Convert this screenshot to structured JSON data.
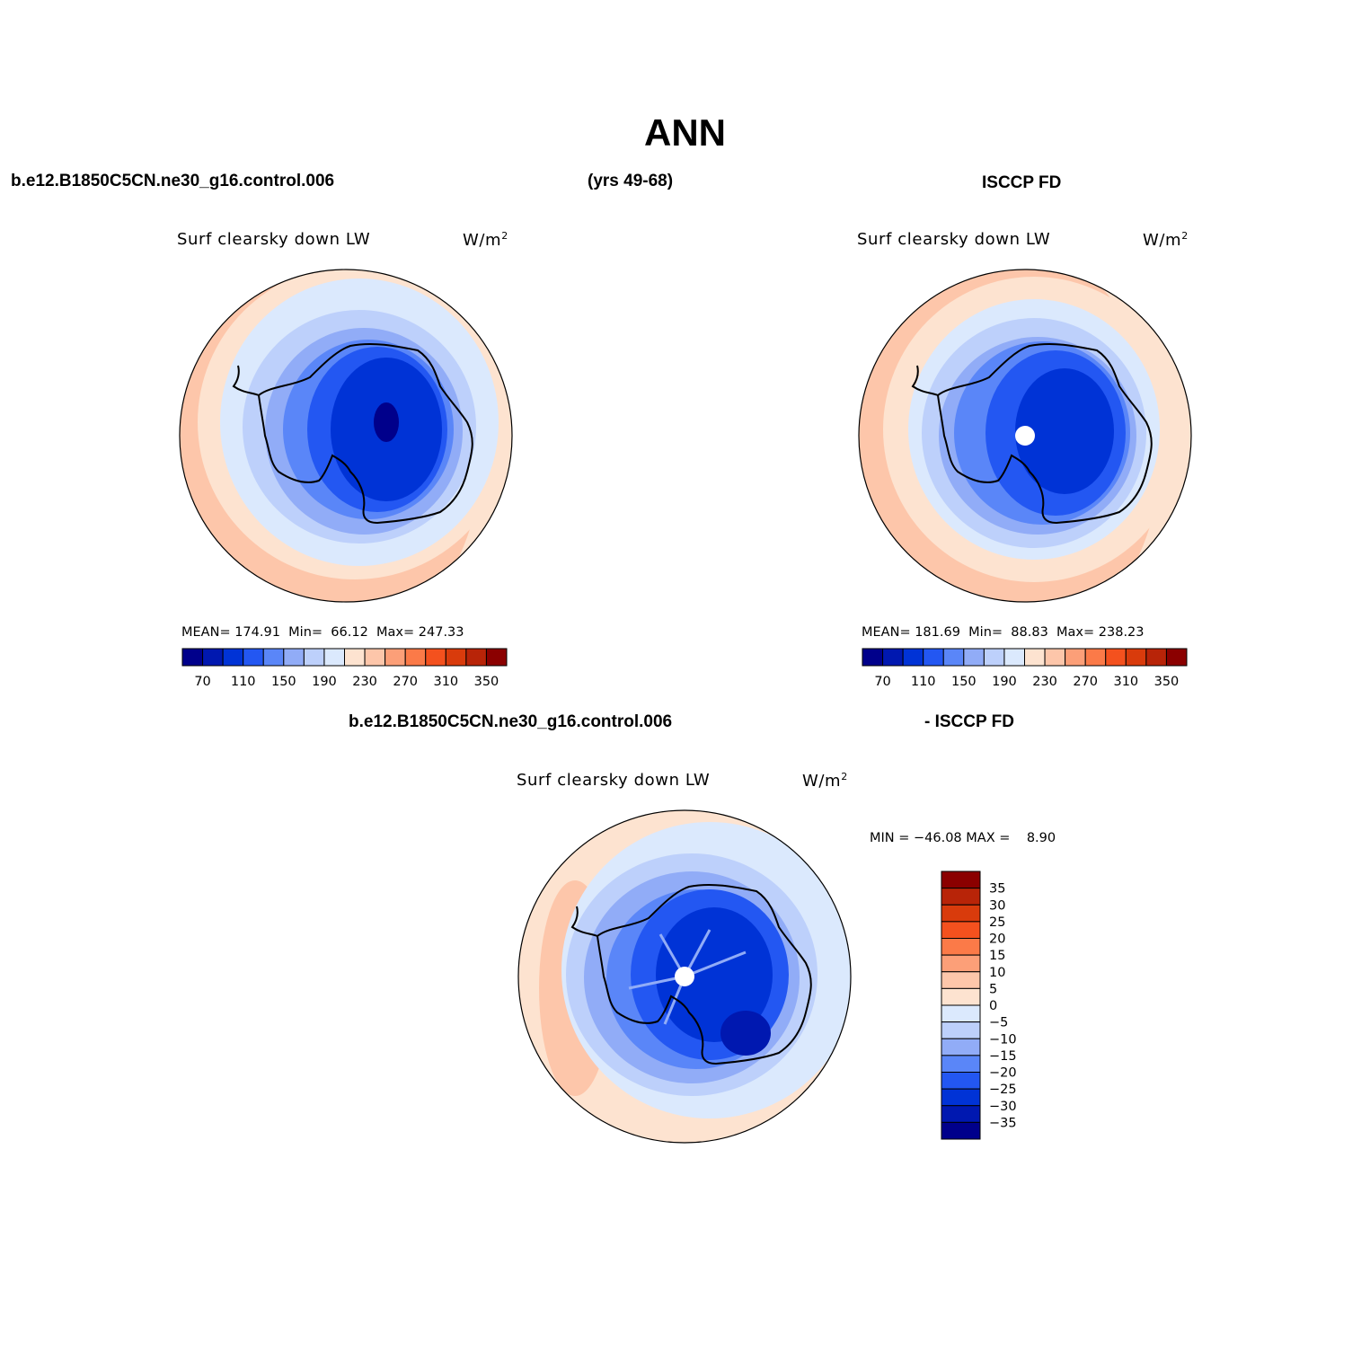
{
  "title": "ANN",
  "header": {
    "case_name": "b.e12.B1850C5CN.ne30_g16.control.006",
    "years": "(yrs 49-68)",
    "obs_name": "ISCCP FD",
    "diff_case_name": "b.e12.B1850C5CN.ne30_g16.control.006",
    "diff_obs_name": "- ISCCP FD"
  },
  "chart_data": [
    {
      "type": "heatmap",
      "projection": "south polar stereographic",
      "title": "Surf clearsky down LW",
      "units": "W/m",
      "units_sup": "2",
      "stats": {
        "mean_label": "MEAN=",
        "mean": "174.91",
        "min_label": "Min=",
        "min": "66.12",
        "max_label": "Max=",
        "max": "247.33"
      },
      "colorbar": {
        "orientation": "horizontal",
        "levels": [
          70,
          90,
          110,
          130,
          150,
          170,
          190,
          210,
          230,
          250,
          270,
          290,
          310,
          330,
          350
        ],
        "tick_labels": [
          "70",
          "110",
          "150",
          "190",
          "230",
          "270",
          "310",
          "350"
        ],
        "colors": [
          "#00008b",
          "#0018b0",
          "#0033d6",
          "#2357f2",
          "#5a86f8",
          "#91acf7",
          "#bdd0fb",
          "#dbe9fd",
          "#fde3d0",
          "#fdc6aa",
          "#fc9f78",
          "#fb7a48",
          "#f4511e",
          "#d93b0c",
          "#b82408",
          "#8b0000"
        ]
      }
    },
    {
      "type": "heatmap",
      "projection": "south polar stereographic",
      "title": "Surf clearsky down LW",
      "units": "W/m",
      "units_sup": "2",
      "stats": {
        "mean_label": "MEAN=",
        "mean": "181.69",
        "min_label": "Min=",
        "min": "88.83",
        "max_label": "Max=",
        "max": "238.23"
      },
      "colorbar": {
        "orientation": "horizontal",
        "levels": [
          70,
          90,
          110,
          130,
          150,
          170,
          190,
          210,
          230,
          250,
          270,
          290,
          310,
          330,
          350
        ],
        "tick_labels": [
          "70",
          "110",
          "150",
          "190",
          "230",
          "270",
          "310",
          "350"
        ],
        "colors": [
          "#00008b",
          "#0018b0",
          "#0033d6",
          "#2357f2",
          "#5a86f8",
          "#91acf7",
          "#bdd0fb",
          "#dbe9fd",
          "#fde3d0",
          "#fdc6aa",
          "#fc9f78",
          "#fb7a48",
          "#f4511e",
          "#d93b0c",
          "#b82408",
          "#8b0000"
        ]
      }
    },
    {
      "type": "heatmap",
      "projection": "south polar stereographic",
      "title": "Surf clearsky down LW",
      "units": "W/m",
      "units_sup": "2",
      "stats_text": "MIN = −46.08 MAX =    8.90",
      "colorbar": {
        "orientation": "vertical",
        "levels": [
          35,
          30,
          25,
          20,
          15,
          10,
          5,
          0,
          -5,
          -10,
          -15,
          -20,
          -25,
          -30,
          -35
        ],
        "tick_labels": [
          "35",
          "30",
          "25",
          "20",
          "15",
          "10",
          "5",
          "0",
          "−5",
          "−10",
          "−15",
          "−20",
          "−25",
          "−30",
          "−35"
        ],
        "colors_top_to_bottom": [
          "#8b0000",
          "#b82408",
          "#d93b0c",
          "#f4511e",
          "#fb7a48",
          "#fc9f78",
          "#fdc6aa",
          "#fde3d0",
          "#dbe9fd",
          "#bdd0fb",
          "#91acf7",
          "#5a86f8",
          "#2357f2",
          "#0033d6",
          "#0018b0",
          "#00008b"
        ]
      }
    }
  ]
}
